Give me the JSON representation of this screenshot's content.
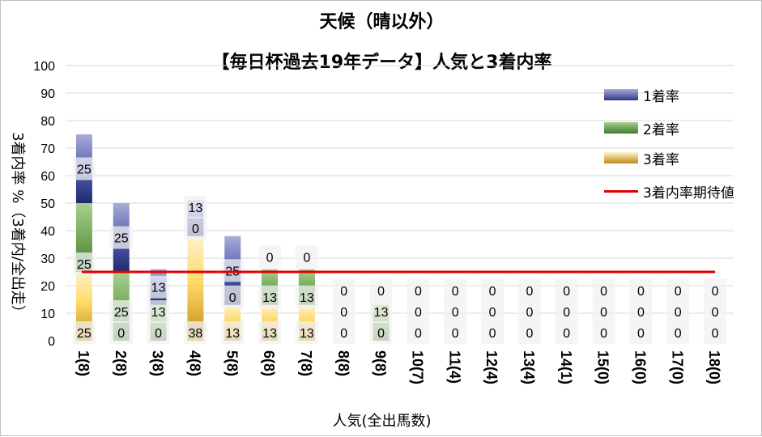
{
  "chart_data": {
    "type": "bar",
    "stacked": true,
    "title": "天候（晴以外）",
    "subtitle": "【毎日杯過去19年データ】人気と3着内率",
    "ylabel": "3着内率 %（3着内/全出走）",
    "xlabel": "人気(全出馬数)",
    "ylim": [
      0,
      100
    ],
    "yticks": [
      0,
      10,
      20,
      30,
      40,
      50,
      60,
      70,
      80,
      90,
      100
    ],
    "grid": true,
    "legend_position": "right",
    "categories": [
      "1(8)",
      "2(8)",
      "3(8)",
      "4(8)",
      "5(8)",
      "6(8)",
      "7(8)",
      "8(8)",
      "9(8)",
      "10(7)",
      "11(4)",
      "12(4)",
      "13(4)",
      "14(1)",
      "15(0)",
      "16(0)",
      "17(0)",
      "18(0)"
    ],
    "series": [
      {
        "name": "3着率",
        "values": [
          25,
          0,
          0,
          38,
          13,
          13,
          13,
          0,
          0,
          0,
          0,
          0,
          0,
          0,
          0,
          0,
          0,
          0
        ]
      },
      {
        "name": "2着率",
        "values": [
          25,
          25,
          13,
          0,
          0,
          13,
          13,
          0,
          13,
          0,
          0,
          0,
          0,
          0,
          0,
          0,
          0,
          0
        ]
      },
      {
        "name": "1着率",
        "values": [
          25,
          25,
          13,
          13,
          25,
          0,
          0,
          0,
          0,
          0,
          0,
          0,
          0,
          0,
          0,
          0,
          0,
          0
        ]
      }
    ],
    "reference_line": {
      "name": "3着内率期待値",
      "value": 25
    },
    "legend": [
      "1着率",
      "2着率",
      "3着率",
      "3着内率期待値"
    ],
    "colors": {
      "first": "#2e3a8c",
      "first_light": "#a9add8",
      "second": "#3f7a2e",
      "second_light": "#a8d08d",
      "third": "#c08c16",
      "third_light": "#ffe699",
      "reference": "#e00000",
      "grid": "#d9d9d9"
    }
  }
}
